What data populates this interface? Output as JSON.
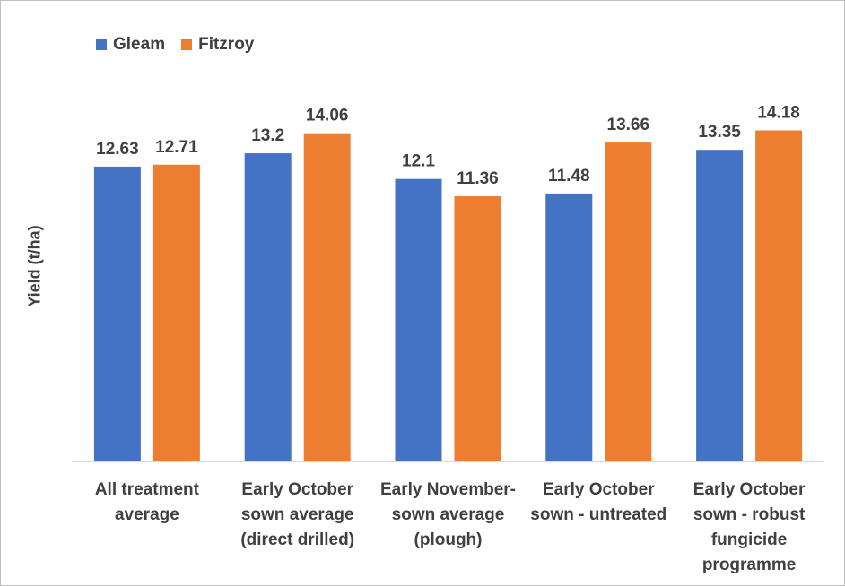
{
  "chart_data": {
    "type": "bar",
    "categories": [
      [
        "All treatment",
        "average"
      ],
      [
        "Early October",
        "sown average",
        "(direct drilled)"
      ],
      [
        "Early November-",
        "sown average",
        "(plough)"
      ],
      [
        "Early October",
        "sown - untreated"
      ],
      [
        "Early October",
        "sown - robust",
        "fungicide",
        "programme"
      ]
    ],
    "series": [
      {
        "name": "Gleam",
        "color": "#4472c4",
        "values": [
          12.63,
          13.2,
          12.1,
          11.48,
          13.35
        ],
        "labels": [
          "12.63",
          "13.2",
          "12.1",
          "11.48",
          "13.35"
        ]
      },
      {
        "name": "Fitzroy",
        "color": "#ed7d31",
        "values": [
          12.71,
          14.06,
          11.36,
          13.66,
          14.18
        ],
        "labels": [
          "12.71",
          "14.06",
          "11.36",
          "13.66",
          "14.18"
        ]
      }
    ],
    "title": "",
    "xlabel": "",
    "ylabel": "Yield (t/ha)",
    "ylim": [
      0,
      18
    ],
    "grid": false,
    "legend_position": "top-left",
    "data_labels": true
  }
}
